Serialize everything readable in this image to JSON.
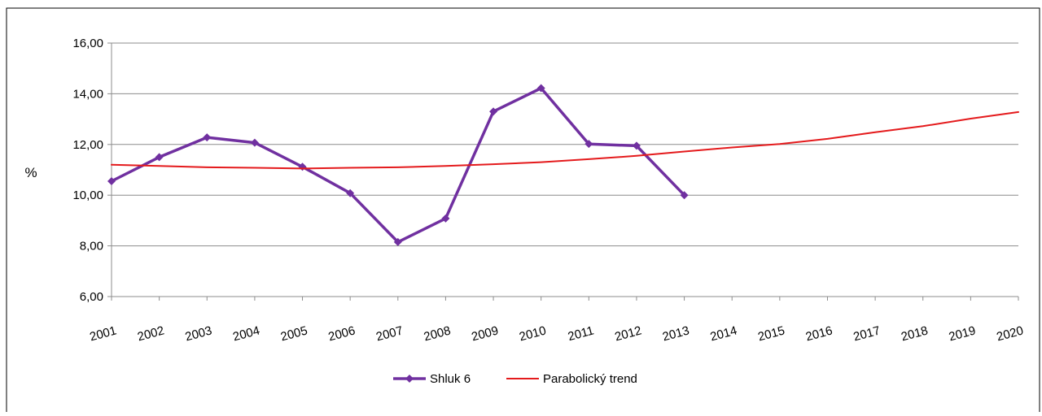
{
  "chart_data": {
    "type": "line",
    "title": "",
    "xlabel": "",
    "ylabel": "%",
    "x": [
      "2001",
      "2002",
      "2003",
      "2004",
      "2005",
      "2006",
      "2007",
      "2008",
      "2009",
      "2010",
      "2011",
      "2012",
      "2013",
      "2014",
      "2015",
      "2016",
      "2017",
      "2018",
      "2019",
      "2020"
    ],
    "ylim": [
      6,
      16
    ],
    "yticks": [
      "6,00",
      "8,00",
      "10,00",
      "12,00",
      "14,00",
      "16,00"
    ],
    "ytick_values": [
      6,
      8,
      10,
      12,
      14,
      16
    ],
    "grid": true,
    "legend_position": "bottom",
    "series": [
      {
        "name": "Shluk 6",
        "color": "#7030a0",
        "marker": "diamond",
        "values": [
          10.55,
          11.5,
          12.28,
          12.07,
          11.12,
          10.08,
          8.15,
          9.08,
          13.3,
          14.22,
          12.02,
          11.95,
          10.0,
          null,
          null,
          null,
          null,
          null,
          null,
          null
        ]
      },
      {
        "name": "Parabolický trend",
        "color": "#e41a1c",
        "marker": "none",
        "values": [
          11.2,
          11.15,
          11.1,
          11.08,
          11.05,
          11.08,
          11.1,
          11.15,
          11.22,
          11.3,
          11.42,
          11.55,
          11.72,
          11.88,
          12.02,
          12.22,
          12.48,
          12.72,
          13.02,
          13.28
        ]
      }
    ]
  }
}
